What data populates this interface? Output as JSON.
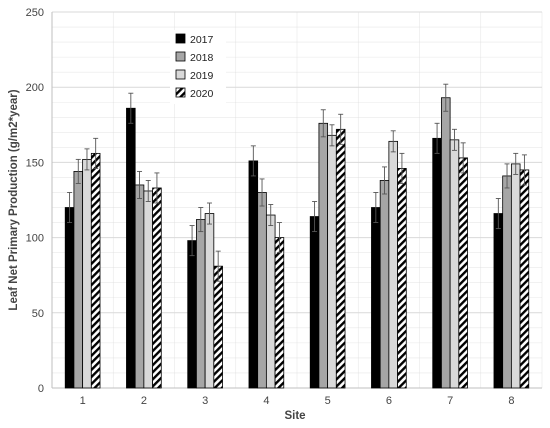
{
  "chart_data": {
    "type": "bar",
    "categories": [
      "1",
      "2",
      "3",
      "4",
      "5",
      "6",
      "7",
      "8"
    ],
    "series": [
      {
        "name": "2017",
        "fill": "solid-black",
        "values": [
          120,
          186,
          98,
          151,
          114,
          120,
          166,
          116
        ],
        "errors": [
          10,
          10,
          10,
          10,
          10,
          10,
          10,
          10
        ]
      },
      {
        "name": "2018",
        "fill": "gray",
        "values": [
          144,
          135,
          112,
          130,
          176,
          138,
          193,
          141
        ],
        "errors": [
          8,
          9,
          8,
          9,
          9,
          9,
          9,
          8
        ]
      },
      {
        "name": "2019",
        "fill": "light-gray",
        "values": [
          152,
          131,
          116,
          115,
          168,
          164,
          165,
          149
        ],
        "errors": [
          7,
          7,
          7,
          7,
          7,
          7,
          7,
          7
        ]
      },
      {
        "name": "2020",
        "fill": "diagonal-hatch",
        "values": [
          156,
          133,
          81,
          100,
          172,
          146,
          153,
          145
        ],
        "errors": [
          10,
          10,
          10,
          10,
          10,
          10,
          10,
          10
        ]
      }
    ],
    "xlabel": "Site",
    "ylabel": "Leaf Net Primary Production (g/m2*year)",
    "ylim": [
      0,
      250
    ],
    "yticks": [
      0,
      50,
      100,
      150,
      200,
      250
    ],
    "grid": true,
    "legend": "top-left",
    "colors": {
      "solid-black": "#000000",
      "gray": "#a6a6a6",
      "light-gray": "#d9d9d9",
      "hatch": "#000000",
      "gridline": "#d9d9d9",
      "axis": "#bfbfbf"
    }
  }
}
